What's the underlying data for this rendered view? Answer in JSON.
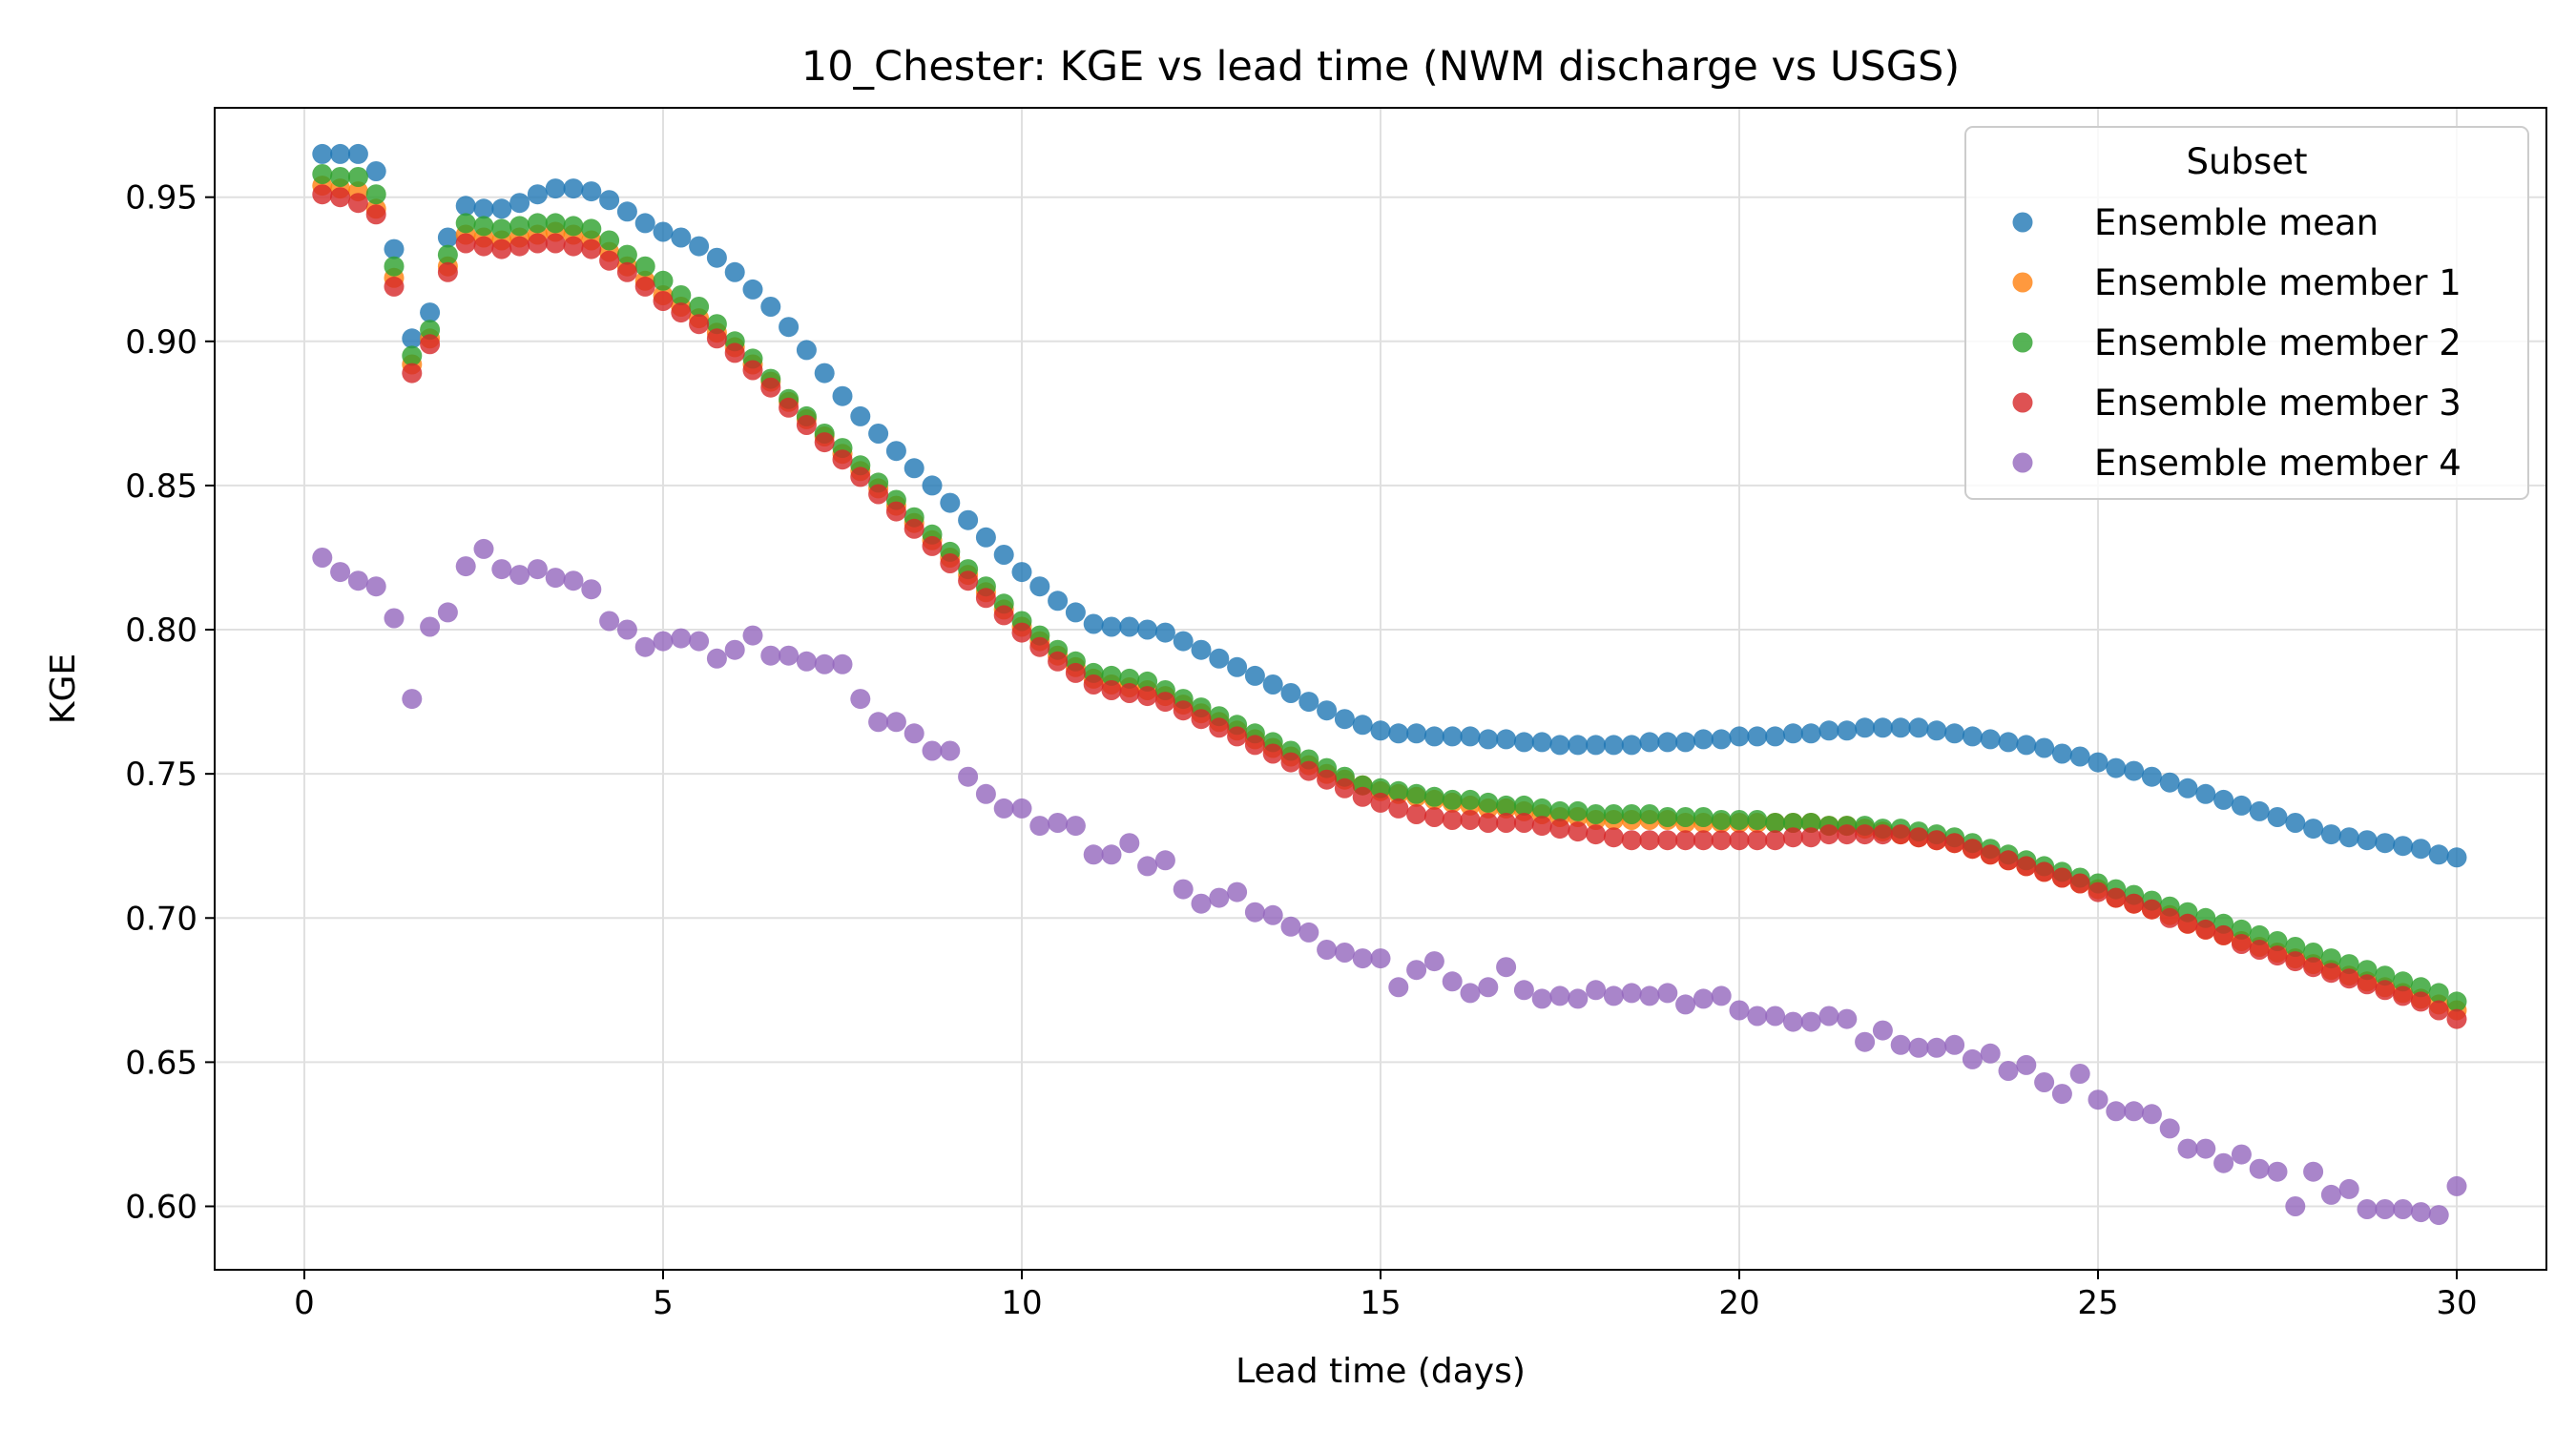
{
  "chart_data": {
    "type": "scatter",
    "title": "10_Chester: KGE vs lead time (NWM discharge vs USGS)",
    "xlabel": "Lead time (days)",
    "ylabel": "KGE",
    "xlim": [
      -1.25,
      31.25
    ],
    "ylim": [
      0.578,
      0.981
    ],
    "xticks": [
      0,
      5,
      10,
      15,
      20,
      25,
      30
    ],
    "yticks": [
      0.6,
      0.65,
      0.7,
      0.75,
      0.8,
      0.85,
      0.9,
      0.95
    ],
    "ytick_labels": [
      "0.60",
      "0.65",
      "0.70",
      "0.75",
      "0.80",
      "0.85",
      "0.90",
      "0.95"
    ],
    "grid": true,
    "legend": {
      "title": "Subset",
      "position": "top-right"
    },
    "x_start": 0.25,
    "x_step": 0.25,
    "series": [
      {
        "name": "Ensemble mean",
        "color": "#1f77b4",
        "y": [
          0.965,
          0.965,
          0.965,
          0.959,
          0.932,
          0.901,
          0.91,
          0.936,
          0.947,
          0.946,
          0.946,
          0.948,
          0.951,
          0.953,
          0.953,
          0.952,
          0.949,
          0.945,
          0.941,
          0.938,
          0.936,
          0.933,
          0.929,
          0.924,
          0.918,
          0.912,
          0.905,
          0.897,
          0.889,
          0.881,
          0.874,
          0.868,
          0.862,
          0.856,
          0.85,
          0.844,
          0.838,
          0.832,
          0.826,
          0.82,
          0.815,
          0.81,
          0.806,
          0.802,
          0.801,
          0.801,
          0.8,
          0.799,
          0.796,
          0.793,
          0.79,
          0.787,
          0.784,
          0.781,
          0.778,
          0.775,
          0.772,
          0.769,
          0.767,
          0.765,
          0.764,
          0.764,
          0.763,
          0.763,
          0.763,
          0.762,
          0.762,
          0.761,
          0.761,
          0.76,
          0.76,
          0.76,
          0.76,
          0.76,
          0.761,
          0.761,
          0.761,
          0.762,
          0.762,
          0.763,
          0.763,
          0.763,
          0.764,
          0.764,
          0.765,
          0.765,
          0.766,
          0.766,
          0.766,
          0.766,
          0.765,
          0.764,
          0.763,
          0.762,
          0.761,
          0.76,
          0.759,
          0.757,
          0.756,
          0.754,
          0.752,
          0.751,
          0.749,
          0.747,
          0.745,
          0.743,
          0.741,
          0.739,
          0.737,
          0.735,
          0.733,
          0.731,
          0.729,
          0.728,
          0.727,
          0.726,
          0.725,
          0.724,
          0.722,
          0.721
        ]
      },
      {
        "name": "Ensemble member 1",
        "color": "#ff7f0e",
        "y": [
          0.954,
          0.953,
          0.952,
          0.946,
          0.922,
          0.892,
          0.901,
          0.926,
          0.937,
          0.936,
          0.935,
          0.936,
          0.937,
          0.938,
          0.937,
          0.935,
          0.931,
          0.926,
          0.921,
          0.916,
          0.912,
          0.908,
          0.903,
          0.898,
          0.892,
          0.886,
          0.879,
          0.873,
          0.867,
          0.861,
          0.855,
          0.849,
          0.843,
          0.837,
          0.831,
          0.825,
          0.819,
          0.813,
          0.807,
          0.801,
          0.796,
          0.791,
          0.787,
          0.783,
          0.781,
          0.78,
          0.779,
          0.777,
          0.774,
          0.771,
          0.768,
          0.765,
          0.762,
          0.759,
          0.756,
          0.753,
          0.75,
          0.748,
          0.746,
          0.744,
          0.743,
          0.742,
          0.741,
          0.74,
          0.739,
          0.738,
          0.738,
          0.737,
          0.736,
          0.735,
          0.735,
          0.734,
          0.734,
          0.734,
          0.734,
          0.734,
          0.733,
          0.733,
          0.733,
          0.733,
          0.733,
          0.733,
          0.733,
          0.733,
          0.732,
          0.732,
          0.731,
          0.73,
          0.729,
          0.728,
          0.727,
          0.726,
          0.724,
          0.722,
          0.72,
          0.718,
          0.716,
          0.714,
          0.712,
          0.71,
          0.707,
          0.705,
          0.703,
          0.701,
          0.698,
          0.696,
          0.694,
          0.692,
          0.69,
          0.688,
          0.686,
          0.684,
          0.682,
          0.68,
          0.678,
          0.676,
          0.674,
          0.672,
          0.67,
          0.668
        ]
      },
      {
        "name": "Ensemble member 2",
        "color": "#2ca02c",
        "y": [
          0.958,
          0.957,
          0.957,
          0.951,
          0.926,
          0.895,
          0.904,
          0.93,
          0.941,
          0.94,
          0.939,
          0.94,
          0.941,
          0.941,
          0.94,
          0.939,
          0.935,
          0.93,
          0.926,
          0.921,
          0.916,
          0.912,
          0.906,
          0.9,
          0.894,
          0.887,
          0.88,
          0.874,
          0.868,
          0.863,
          0.857,
          0.851,
          0.845,
          0.839,
          0.833,
          0.827,
          0.821,
          0.815,
          0.809,
          0.803,
          0.798,
          0.793,
          0.789,
          0.785,
          0.784,
          0.783,
          0.782,
          0.779,
          0.776,
          0.773,
          0.77,
          0.767,
          0.764,
          0.761,
          0.758,
          0.755,
          0.752,
          0.749,
          0.746,
          0.745,
          0.744,
          0.743,
          0.742,
          0.741,
          0.741,
          0.74,
          0.739,
          0.739,
          0.738,
          0.737,
          0.737,
          0.736,
          0.736,
          0.736,
          0.736,
          0.735,
          0.735,
          0.735,
          0.734,
          0.734,
          0.734,
          0.733,
          0.733,
          0.733,
          0.732,
          0.732,
          0.732,
          0.731,
          0.731,
          0.73,
          0.729,
          0.728,
          0.726,
          0.724,
          0.722,
          0.72,
          0.718,
          0.716,
          0.714,
          0.712,
          0.71,
          0.708,
          0.706,
          0.704,
          0.702,
          0.7,
          0.698,
          0.696,
          0.694,
          0.692,
          0.69,
          0.688,
          0.686,
          0.684,
          0.682,
          0.68,
          0.678,
          0.676,
          0.674,
          0.671
        ]
      },
      {
        "name": "Ensemble member 3",
        "color": "#d62728",
        "y": [
          0.951,
          0.95,
          0.948,
          0.944,
          0.919,
          0.889,
          0.899,
          0.924,
          0.934,
          0.933,
          0.932,
          0.933,
          0.934,
          0.934,
          0.933,
          0.932,
          0.928,
          0.924,
          0.919,
          0.914,
          0.91,
          0.906,
          0.901,
          0.896,
          0.89,
          0.884,
          0.877,
          0.871,
          0.865,
          0.859,
          0.853,
          0.847,
          0.841,
          0.835,
          0.829,
          0.823,
          0.817,
          0.811,
          0.805,
          0.799,
          0.794,
          0.789,
          0.785,
          0.781,
          0.779,
          0.778,
          0.777,
          0.775,
          0.772,
          0.769,
          0.766,
          0.763,
          0.76,
          0.757,
          0.754,
          0.751,
          0.748,
          0.745,
          0.742,
          0.74,
          0.738,
          0.736,
          0.735,
          0.734,
          0.734,
          0.733,
          0.733,
          0.733,
          0.732,
          0.731,
          0.73,
          0.729,
          0.728,
          0.727,
          0.727,
          0.727,
          0.727,
          0.727,
          0.727,
          0.727,
          0.727,
          0.727,
          0.728,
          0.728,
          0.729,
          0.729,
          0.729,
          0.729,
          0.729,
          0.728,
          0.727,
          0.726,
          0.724,
          0.722,
          0.72,
          0.718,
          0.716,
          0.714,
          0.712,
          0.709,
          0.707,
          0.705,
          0.703,
          0.7,
          0.698,
          0.696,
          0.694,
          0.691,
          0.689,
          0.687,
          0.685,
          0.683,
          0.681,
          0.679,
          0.677,
          0.675,
          0.673,
          0.671,
          0.668,
          0.665
        ]
      },
      {
        "name": "Ensemble member 4",
        "color": "#9467bd",
        "y": [
          0.825,
          0.82,
          0.817,
          0.815,
          0.804,
          0.776,
          0.801,
          0.806,
          0.822,
          0.828,
          0.821,
          0.819,
          0.821,
          0.818,
          0.817,
          0.814,
          0.803,
          0.8,
          0.794,
          0.796,
          0.797,
          0.796,
          0.79,
          0.793,
          0.798,
          0.791,
          0.791,
          0.789,
          0.788,
          0.788,
          0.776,
          0.768,
          0.768,
          0.764,
          0.758,
          0.758,
          0.749,
          0.743,
          0.738,
          0.738,
          0.732,
          0.733,
          0.732,
          0.722,
          0.722,
          0.726,
          0.718,
          0.72,
          0.71,
          0.705,
          0.707,
          0.709,
          0.702,
          0.701,
          0.697,
          0.695,
          0.689,
          0.688,
          0.686,
          0.686,
          0.676,
          0.682,
          0.685,
          0.678,
          0.674,
          0.676,
          0.683,
          0.675,
          0.672,
          0.673,
          0.672,
          0.675,
          0.673,
          0.674,
          0.673,
          0.674,
          0.67,
          0.672,
          0.673,
          0.668,
          0.666,
          0.666,
          0.664,
          0.664,
          0.666,
          0.665,
          0.657,
          0.661,
          0.656,
          0.655,
          0.655,
          0.656,
          0.651,
          0.653,
          0.647,
          0.649,
          0.643,
          0.639,
          0.646,
          0.637,
          0.633,
          0.633,
          0.632,
          0.627,
          0.62,
          0.62,
          0.615,
          0.618,
          0.613,
          0.612,
          0.6,
          0.612,
          0.604,
          0.606,
          0.599,
          0.599,
          0.599,
          0.598,
          0.597,
          0.607
        ]
      }
    ]
  }
}
